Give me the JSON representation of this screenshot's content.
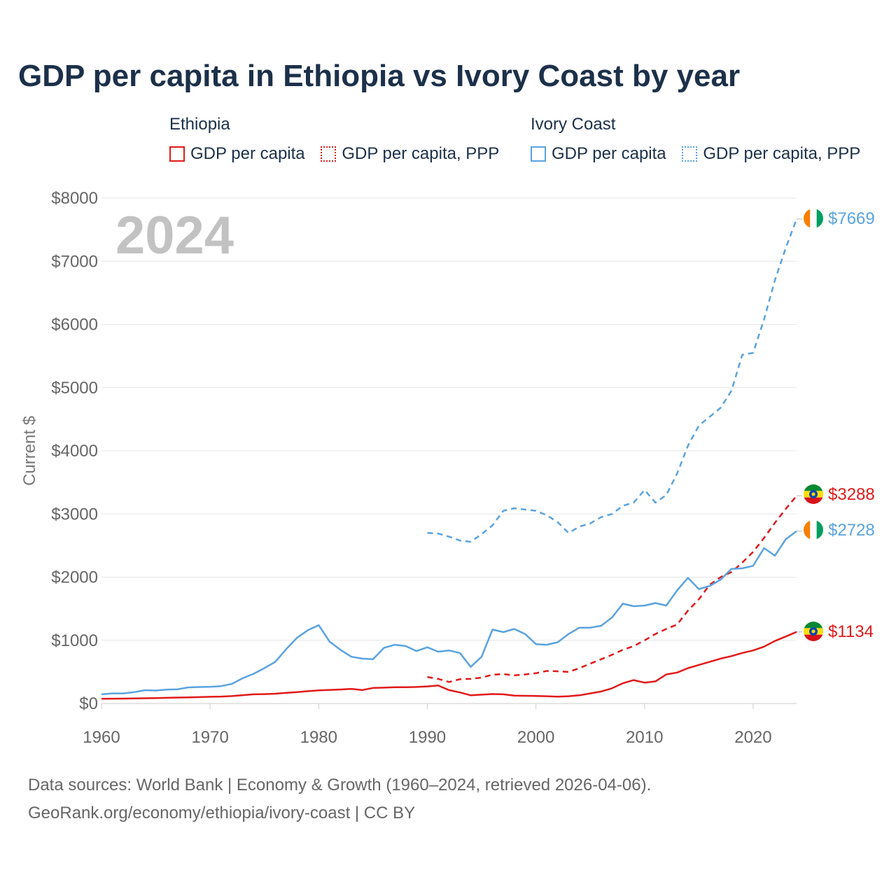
{
  "title": "GDP per capita in Ethiopia vs Ivory Coast by year",
  "legend": {
    "groups": [
      {
        "country": "Ethiopia",
        "color": "#e01a1a",
        "items": [
          "GDP per capita",
          "GDP per capita, PPP"
        ]
      },
      {
        "country": "Ivory Coast",
        "color": "#5aa3e0",
        "items": [
          "GDP per capita",
          "GDP per capita, PPP"
        ]
      }
    ]
  },
  "footer": {
    "line1": "Data sources: World Bank | Economy & Growth (1960–2024, retrieved 2026-04-06).",
    "line2": "GeoRank.org/economy/ethiopia/ivory-coast | CC BY"
  },
  "chart_data": {
    "type": "line",
    "year_label": "2024",
    "ylabel": "Current $",
    "xlim": [
      1960,
      2024
    ],
    "ylim": [
      0,
      8000
    ],
    "x_ticks": [
      1960,
      1970,
      1980,
      1990,
      2000,
      2010,
      2020
    ],
    "y_ticks": [
      0,
      1000,
      2000,
      3000,
      4000,
      5000,
      6000,
      7000,
      8000
    ],
    "y_tick_labels": [
      "$0",
      "$1000",
      "$2000",
      "$3000",
      "$4000",
      "$5000",
      "$6000",
      "$7000",
      "$8000"
    ],
    "series": [
      {
        "name": "Ethiopia GDP per capita",
        "country": "Ethiopia",
        "color": "#e01a1a",
        "dash": "solid",
        "end_label": "$1134",
        "x": [
          1960,
          1961,
          1962,
          1963,
          1964,
          1965,
          1966,
          1967,
          1968,
          1969,
          1970,
          1971,
          1972,
          1973,
          1974,
          1975,
          1976,
          1977,
          1978,
          1979,
          1980,
          1981,
          1982,
          1983,
          1984,
          1985,
          1986,
          1987,
          1988,
          1989,
          1990,
          1991,
          1992,
          1993,
          1994,
          1995,
          1996,
          1997,
          1998,
          1999,
          2000,
          2001,
          2002,
          2003,
          2004,
          2005,
          2006,
          2007,
          2008,
          2009,
          2010,
          2011,
          2012,
          2013,
          2014,
          2015,
          2016,
          2017,
          2018,
          2019,
          2020,
          2021,
          2022,
          2023,
          2024
        ],
        "values": [
          75,
          76,
          78,
          80,
          83,
          86,
          90,
          94,
          97,
          101,
          106,
          110,
          118,
          132,
          145,
          148,
          155,
          170,
          180,
          195,
          208,
          215,
          222,
          232,
          213,
          246,
          250,
          258,
          258,
          262,
          270,
          285,
          212,
          175,
          130,
          140,
          150,
          145,
          125,
          122,
          120,
          115,
          108,
          115,
          130,
          160,
          190,
          240,
          320,
          370,
          330,
          350,
          460,
          490,
          560,
          610,
          660,
          710,
          750,
          800,
          840,
          900,
          990,
          1060,
          1134
        ]
      },
      {
        "name": "Ethiopia GDP per capita, PPP",
        "country": "Ethiopia",
        "color": "#e01a1a",
        "dash": "dashed",
        "end_label": "$3288",
        "x": [
          1990,
          1991,
          1992,
          1993,
          1994,
          1995,
          1996,
          1997,
          1998,
          1999,
          2000,
          2001,
          2002,
          2003,
          2004,
          2005,
          2006,
          2007,
          2008,
          2009,
          2010,
          2011,
          2012,
          2013,
          2014,
          2015,
          2016,
          2017,
          2018,
          2019,
          2020,
          2021,
          2022,
          2023,
          2024
        ],
        "values": [
          420,
          390,
          340,
          385,
          390,
          410,
          455,
          465,
          445,
          460,
          480,
          515,
          510,
          500,
          560,
          630,
          700,
          770,
          850,
          910,
          1000,
          1100,
          1180,
          1250,
          1470,
          1650,
          1880,
          2000,
          2080,
          2230,
          2400,
          2620,
          2860,
          3080,
          3288
        ]
      },
      {
        "name": "Ivory Coast GDP per capita",
        "country": "Ivory Coast",
        "color": "#5aa3e0",
        "dash": "solid",
        "end_label": "$2728",
        "x": [
          1960,
          1961,
          1962,
          1963,
          1964,
          1965,
          1966,
          1967,
          1968,
          1969,
          1970,
          1971,
          1972,
          1973,
          1974,
          1975,
          1976,
          1977,
          1978,
          1979,
          1980,
          1981,
          1982,
          1983,
          1984,
          1985,
          1986,
          1987,
          1988,
          1989,
          1990,
          1991,
          1992,
          1993,
          1994,
          1995,
          1996,
          1997,
          1998,
          1999,
          2000,
          2001,
          2002,
          2003,
          2004,
          2005,
          2006,
          2007,
          2008,
          2009,
          2010,
          2011,
          2012,
          2013,
          2014,
          2015,
          2016,
          2017,
          2018,
          2019,
          2020,
          2021,
          2022,
          2023,
          2024
        ],
        "values": [
          145,
          160,
          160,
          180,
          210,
          205,
          220,
          225,
          255,
          260,
          265,
          275,
          310,
          400,
          470,
          560,
          660,
          860,
          1040,
          1160,
          1240,
          980,
          850,
          740,
          710,
          700,
          880,
          930,
          910,
          830,
          890,
          820,
          840,
          800,
          580,
          740,
          1170,
          1130,
          1180,
          1100,
          940,
          930,
          970,
          1100,
          1200,
          1200,
          1230,
          1360,
          1580,
          1540,
          1550,
          1590,
          1550,
          1790,
          1990,
          1810,
          1860,
          1960,
          2130,
          2140,
          2180,
          2460,
          2340,
          2600,
          2728
        ]
      },
      {
        "name": "Ivory Coast GDP per capita, PPP",
        "country": "Ivory Coast",
        "color": "#5aa3e0",
        "dash": "dashed",
        "end_label": "$7669",
        "x": [
          1990,
          1991,
          1992,
          1993,
          1994,
          1995,
          1996,
          1997,
          1998,
          1999,
          2000,
          2001,
          2002,
          2003,
          2004,
          2005,
          2006,
          2007,
          2008,
          2009,
          2010,
          2011,
          2012,
          2013,
          2014,
          2015,
          2016,
          2017,
          2018,
          2019,
          2020,
          2021,
          2022,
          2023,
          2024
        ],
        "values": [
          2700,
          2690,
          2640,
          2580,
          2560,
          2680,
          2820,
          3050,
          3090,
          3070,
          3050,
          2980,
          2870,
          2700,
          2800,
          2850,
          2950,
          3000,
          3130,
          3180,
          3380,
          3180,
          3300,
          3640,
          4080,
          4400,
          4540,
          4680,
          4950,
          5520,
          5550,
          6080,
          6700,
          7210,
          7669
        ]
      }
    ]
  }
}
